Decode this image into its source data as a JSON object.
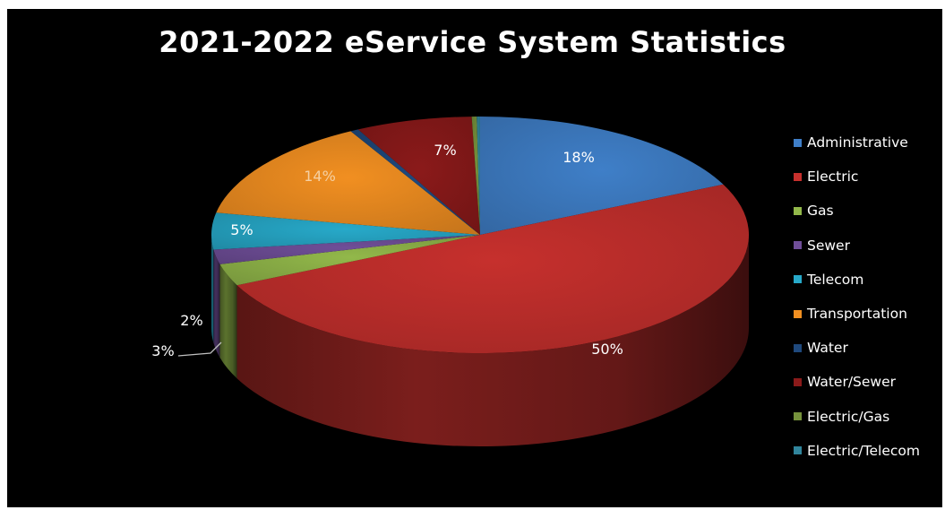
{
  "chart_data": {
    "type": "pie",
    "title": "2021-2022 eService System Statistics",
    "legend_position": "right",
    "style": "3d",
    "categories": [
      "Administrative",
      "Electric",
      "Gas",
      "Sewer",
      "Telecom",
      "Transportation",
      "Water",
      "Water/Sewer",
      "Electric/Gas",
      "Electric/Telecom"
    ],
    "values": [
      18,
      50,
      3,
      2,
      5,
      14,
      0.5,
      7,
      0.3,
      0.2
    ],
    "labels": [
      "18%",
      "50%",
      "3%",
      "2%",
      "5%",
      "14%",
      "",
      "7%",
      "",
      ""
    ],
    "colors": [
      "#3f7fc8",
      "#c6302d",
      "#92b84a",
      "#6f4e98",
      "#27a9c9",
      "#f18f21",
      "#1f497d",
      "#8b1a1a",
      "#76923c",
      "#31859c"
    ]
  }
}
